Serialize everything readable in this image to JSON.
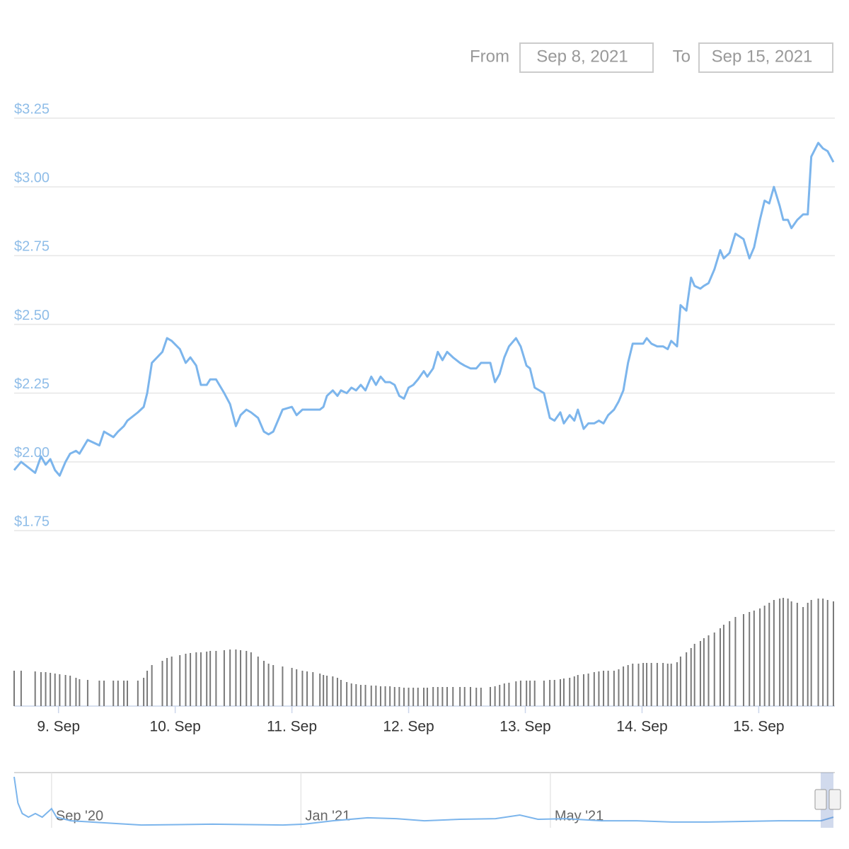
{
  "range_selector": {
    "from_label": "From",
    "from_date": "Sep 8, 2021",
    "to_label": "To",
    "to_date": "Sep 15, 2021"
  },
  "chart_data": [
    {
      "type": "line",
      "x": [
        8.62,
        8.68,
        8.8,
        8.85,
        8.89,
        8.93,
        8.97,
        9.01,
        9.06,
        9.1,
        9.15,
        9.18,
        9.25,
        9.35,
        9.39,
        9.47,
        9.51,
        9.56,
        9.59,
        9.68,
        9.73,
        9.76,
        9.8,
        9.89,
        9.93,
        9.97,
        10.04,
        10.09,
        10.13,
        10.18,
        10.22,
        10.27,
        10.3,
        10.35,
        10.42,
        10.47,
        10.52,
        10.56,
        10.61,
        10.65,
        10.71,
        10.76,
        10.8,
        10.84,
        10.92,
        11.0,
        11.04,
        11.09,
        11.13,
        11.18,
        11.24,
        11.27,
        11.3,
        11.35,
        11.39,
        11.42,
        11.47,
        11.51,
        11.55,
        11.59,
        11.63,
        11.68,
        11.72,
        11.76,
        11.8,
        11.84,
        11.88,
        11.92,
        11.96,
        12.0,
        12.04,
        12.08,
        12.13,
        12.16,
        12.21,
        12.25,
        12.29,
        12.33,
        12.38,
        12.44,
        12.48,
        12.53,
        12.58,
        12.62,
        12.7,
        12.74,
        12.78,
        12.82,
        12.86,
        12.92,
        12.96,
        13.01,
        13.04,
        13.08,
        13.16,
        13.21,
        13.25,
        13.3,
        13.33,
        13.38,
        13.42,
        13.45,
        13.5,
        13.54,
        13.59,
        13.63,
        13.67,
        13.71,
        13.76,
        13.8,
        13.84,
        13.88,
        13.92,
        13.97,
        14.01,
        14.04,
        14.08,
        14.13,
        14.18,
        14.22,
        14.25,
        14.3,
        14.33,
        14.38,
        14.42,
        14.45,
        14.5,
        14.53,
        14.57,
        14.62,
        14.67,
        14.7,
        14.75,
        14.8,
        14.87,
        14.92,
        14.96,
        15.01,
        15.05,
        15.09,
        15.13,
        15.18,
        15.21,
        15.25,
        15.28,
        15.33,
        15.38,
        15.42,
        15.45,
        15.51,
        15.55,
        15.59,
        15.64
      ],
      "series": [
        {
          "type": "line",
          "color": "#7cb5ec",
          "values": [
            1.97,
            2.0,
            1.96,
            2.02,
            1.99,
            2.01,
            1.97,
            1.95,
            2.0,
            2.03,
            2.04,
            2.03,
            2.08,
            2.06,
            2.11,
            2.09,
            2.11,
            2.13,
            2.15,
            2.18,
            2.2,
            2.25,
            2.36,
            2.4,
            2.45,
            2.44,
            2.41,
            2.36,
            2.38,
            2.35,
            2.28,
            2.28,
            2.3,
            2.3,
            2.25,
            2.21,
            2.13,
            2.17,
            2.19,
            2.18,
            2.16,
            2.11,
            2.1,
            2.11,
            2.19,
            2.2,
            2.17,
            2.19,
            2.19,
            2.19,
            2.19,
            2.2,
            2.24,
            2.26,
            2.24,
            2.26,
            2.25,
            2.27,
            2.26,
            2.28,
            2.26,
            2.31,
            2.28,
            2.31,
            2.29,
            2.29,
            2.28,
            2.24,
            2.23,
            2.27,
            2.28,
            2.3,
            2.33,
            2.31,
            2.34,
            2.4,
            2.37,
            2.4,
            2.38,
            2.36,
            2.35,
            2.34,
            2.34,
            2.36,
            2.36,
            2.29,
            2.32,
            2.38,
            2.42,
            2.45,
            2.42,
            2.35,
            2.34,
            2.27,
            2.25,
            2.16,
            2.15,
            2.18,
            2.14,
            2.17,
            2.15,
            2.19,
            2.12,
            2.14,
            2.14,
            2.15,
            2.14,
            2.17,
            2.19,
            2.22,
            2.26,
            2.36,
            2.43,
            2.43,
            2.43,
            2.45,
            2.43,
            2.42,
            2.42,
            2.41,
            2.44,
            2.42,
            2.57,
            2.55,
            2.67,
            2.64,
            2.63,
            2.64,
            2.65,
            2.7,
            2.77,
            2.74,
            2.76,
            2.83,
            2.81,
            2.74,
            2.78,
            2.88,
            2.95,
            2.94,
            3.0,
            2.93,
            2.88,
            2.88,
            2.85,
            2.88,
            2.9,
            2.9,
            3.11,
            3.16,
            3.14,
            3.13,
            3.09
          ]
        },
        {
          "type": "bar",
          "color": "#7a7a7a",
          "axis": "y2",
          "values": [
            50,
            50,
            49,
            48,
            48,
            47,
            46,
            45,
            44,
            43,
            40,
            38,
            37,
            36,
            36,
            36,
            36,
            36,
            36,
            36,
            40,
            50,
            58,
            64,
            68,
            70,
            72,
            74,
            75,
            76,
            76,
            77,
            78,
            78,
            79,
            80,
            80,
            79,
            78,
            76,
            70,
            64,
            60,
            58,
            56,
            54,
            52,
            50,
            49,
            48,
            46,
            44,
            43,
            42,
            40,
            37,
            34,
            32,
            31,
            30,
            30,
            29,
            29,
            28,
            28,
            28,
            27,
            27,
            26,
            26,
            26,
            26,
            26,
            26,
            27,
            27,
            27,
            27,
            27,
            27,
            27,
            27,
            26,
            26,
            27,
            28,
            30,
            32,
            33,
            35,
            36,
            36,
            36,
            36,
            36,
            37,
            37,
            38,
            39,
            40,
            42,
            44,
            45,
            46,
            48,
            49,
            50,
            50,
            50,
            52,
            56,
            58,
            60,
            60,
            61,
            61,
            61,
            61,
            61,
            60,
            60,
            62,
            70,
            76,
            82,
            88,
            92,
            96,
            100,
            104,
            110,
            115,
            120,
            126,
            130,
            133,
            135,
            138,
            142,
            146,
            150,
            152,
            153,
            152,
            148,
            146,
            140,
            146,
            150,
            152,
            152,
            150,
            148
          ]
        }
      ],
      "xlim": [
        8.62,
        15.64
      ],
      "xticks": [
        {
          "value": 9,
          "label": "9. Sep"
        },
        {
          "value": 10,
          "label": "10. Sep"
        },
        {
          "value": 11,
          "label": "11. Sep"
        },
        {
          "value": 12,
          "label": "12. Sep"
        },
        {
          "value": 13,
          "label": "13. Sep"
        },
        {
          "value": 14,
          "label": "14. Sep"
        },
        {
          "value": 15,
          "label": "15. Sep"
        }
      ],
      "ylim": [
        1.75,
        3.25
      ],
      "yticks": [
        {
          "value": 1.75,
          "label": "$1.75"
        },
        {
          "value": 2.0,
          "label": "$2.00"
        },
        {
          "value": 2.25,
          "label": "$2.25"
        },
        {
          "value": 2.5,
          "label": "$2.50"
        },
        {
          "value": 2.75,
          "label": "$2.75"
        },
        {
          "value": 3.0,
          "label": "$3.00"
        },
        {
          "value": 3.25,
          "label": "$3.25"
        }
      ],
      "y2lim": [
        0,
        160
      ],
      "grid": true
    },
    {
      "type": "line",
      "color": "#7cb5ec",
      "x": [
        -0.6,
        -0.54,
        -0.47,
        -0.37,
        -0.26,
        -0.15,
        0,
        0.08,
        0.31,
        0.87,
        1.44,
        2.58,
        3.71,
        4.05,
        4.51,
        5.07,
        5.53,
        5.98,
        6.55,
        7.12,
        7.51,
        7.8,
        8.25,
        8.82,
        9.39,
        9.95,
        10.52,
        11.09,
        11.66,
        12.11,
        12.34,
        12.54
      ],
      "values": [
        24,
        11.7,
        6.7,
        5,
        6.7,
        5,
        9,
        5,
        3.3,
        2.3,
        1.3,
        1.7,
        1.3,
        1.7,
        3.3,
        4.7,
        4.3,
        3.3,
        4,
        4.3,
        6,
        4,
        4.3,
        3.3,
        3.3,
        2.7,
        2.7,
        3,
        3.3,
        3.3,
        3.3,
        5
      ],
      "xlim": [
        -0.6,
        12.54
      ],
      "xticks": [
        {
          "value": 0,
          "label": "Sep '20"
        },
        {
          "value": 4,
          "label": "Jan '21"
        },
        {
          "value": 8,
          "label": "May '21"
        }
      ],
      "ylim": [
        0,
        26
      ],
      "grid": true
    }
  ]
}
